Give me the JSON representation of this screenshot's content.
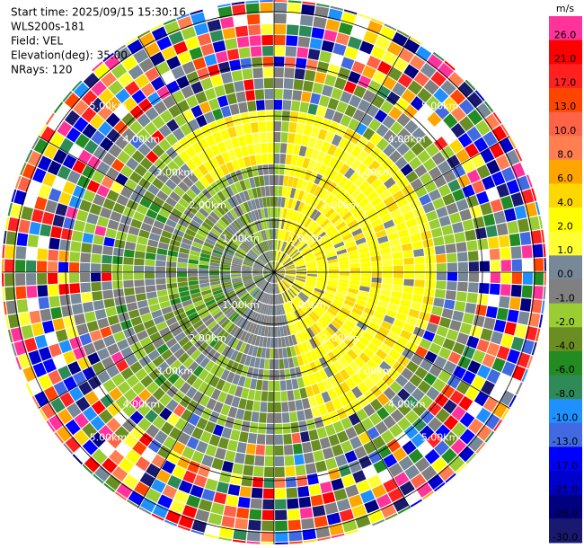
{
  "chart_data": {
    "type": "ppi",
    "header": [
      "Start time: 2025/09/15 15:30:16",
      "WLS200s-181",
      "Field: VEL",
      "Elevation(deg): 35.00",
      "NRays: 120"
    ],
    "range_rings": [
      "1.00km",
      "2.00km",
      "3.00km",
      "4.00km",
      "5.00km"
    ],
    "colorbar": {
      "unit": "m/s",
      "levels": [
        {
          "label": "26.0",
          "color": "#ff3399"
        },
        {
          "label": "21.0",
          "color": "#ff0000"
        },
        {
          "label": "17.0",
          "color": "#ff2020"
        },
        {
          "label": "13.0",
          "color": "#ff4500"
        },
        {
          "label": "10.0",
          "color": "#ff6347"
        },
        {
          "label": "8.0",
          "color": "#ff7f50"
        },
        {
          "label": "6.0",
          "color": "#ffa500"
        },
        {
          "label": "4.0",
          "color": "#ffd700"
        },
        {
          "label": "2.0",
          "color": "#ffff00"
        },
        {
          "label": "1.0",
          "color": "#ffff33"
        },
        {
          "label": "0.0",
          "color": "#778899"
        },
        {
          "label": "-1.0",
          "color": "#808080"
        },
        {
          "label": "-2.0",
          "color": "#9acd32"
        },
        {
          "label": "-4.0",
          "color": "#6b8e23"
        },
        {
          "label": "-6.0",
          "color": "#228b22"
        },
        {
          "label": "-8.0",
          "color": "#2e8b57"
        },
        {
          "label": "-10.0",
          "color": "#1e90ff"
        },
        {
          "label": "-13.0",
          "color": "#4169e1"
        },
        {
          "label": "-17.0",
          "color": "#0000ff"
        },
        {
          "label": "-21.0",
          "color": "#0000cd"
        },
        {
          "label": "-26.0",
          "color": "#000080"
        },
        {
          "label": "-30.0",
          "color": "#191970"
        }
      ]
    }
  }
}
